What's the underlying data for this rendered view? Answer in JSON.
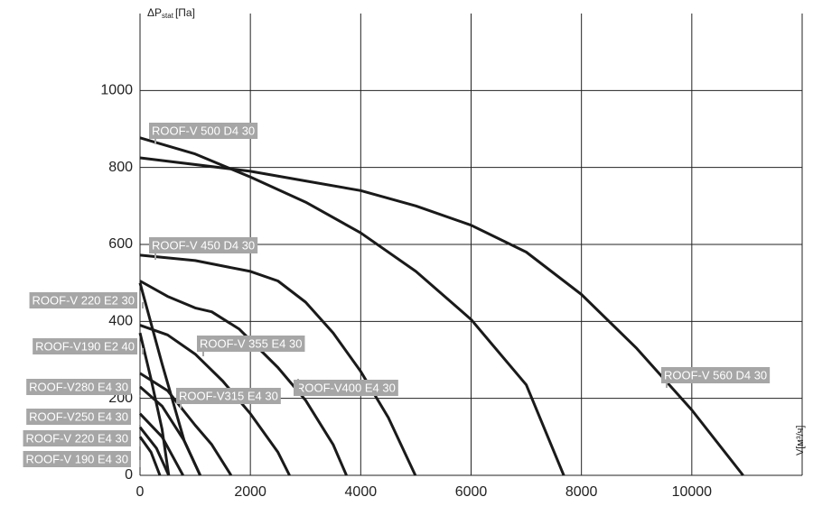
{
  "chart_data": {
    "type": "line",
    "y_label": "ΔP",
    "y_label_sub": "stat",
    "y_label_unit": "[Па]",
    "x_label": "V[м³/ч]",
    "xlim": [
      0,
      12000
    ],
    "xticks": [
      0,
      2000,
      4000,
      6000,
      8000,
      10000
    ],
    "ylim": [
      0,
      1200
    ],
    "yticks": [
      0,
      200,
      400,
      600,
      800,
      1000
    ],
    "grid": true,
    "line_color": "#1a1a1a",
    "label_color": "#a6a6a6",
    "series": [
      {
        "name": "ROOF-V  500 D4 30",
        "x": [
          0,
          1000,
          2000,
          3000,
          4000,
          5000,
          6000,
          7000,
          7680
        ],
        "values": [
          877,
          835,
          775,
          710,
          630,
          530,
          405,
          235,
          0
        ]
      },
      {
        "name": "ROOF-V 450 D4 30",
        "x": [
          0,
          1000,
          2000,
          2500,
          3000,
          3500,
          4000,
          4500,
          4990
        ],
        "values": [
          572,
          558,
          530,
          505,
          450,
          370,
          270,
          150,
          0
        ]
      },
      {
        "name": "ROOF-V 220 E2 30",
        "x": [
          0,
          400,
          800,
          1090
        ],
        "values": [
          500,
          290,
          90,
          0
        ]
      },
      {
        "name": "ROOF-V190 E2 40",
        "x": [
          0,
          200,
          400,
          520
        ],
        "values": [
          370,
          250,
          120,
          0
        ]
      },
      {
        "name": "ROOF-V 355 E4 30",
        "x": [
          0,
          500,
          1000,
          1500,
          2000,
          2500,
          2710
        ],
        "values": [
          390,
          365,
          315,
          245,
          160,
          60,
          0
        ]
      },
      {
        "name": "ROOF-V400 E4 30",
        "x": [
          0,
          500,
          1000,
          1300,
          1800,
          2500,
          3000,
          3500,
          3740
        ],
        "values": [
          505,
          465,
          435,
          425,
          380,
          280,
          195,
          80,
          0
        ]
      },
      {
        "name": "ROOF-V280 E4 30",
        "x": [
          0,
          400,
          800,
          1090
        ],
        "values": [
          230,
          180,
          90,
          0
        ]
      },
      {
        "name": "ROOF-V315 E4 30",
        "x": [
          0,
          500,
          1000,
          1300,
          1650
        ],
        "values": [
          265,
          220,
          130,
          80,
          0
        ]
      },
      {
        "name": "ROOF-V250 E4 30",
        "x": [
          0,
          400,
          780
        ],
        "values": [
          160,
          100,
          0
        ]
      },
      {
        "name": "ROOF-V 220 E4 30",
        "x": [
          0,
          300,
          520
        ],
        "values": [
          125,
          70,
          0
        ]
      },
      {
        "name": "ROOF-V 190 E4 30",
        "x": [
          0,
          200,
          360
        ],
        "values": [
          100,
          60,
          0
        ]
      },
      {
        "name": "ROOF-V 560 D4 30",
        "x": [
          0,
          2000,
          3000,
          4000,
          5000,
          6000,
          7000,
          8000,
          9000,
          10000,
          10930
        ],
        "values": [
          825,
          790,
          765,
          740,
          700,
          650,
          580,
          470,
          330,
          170,
          0
        ]
      }
    ]
  }
}
